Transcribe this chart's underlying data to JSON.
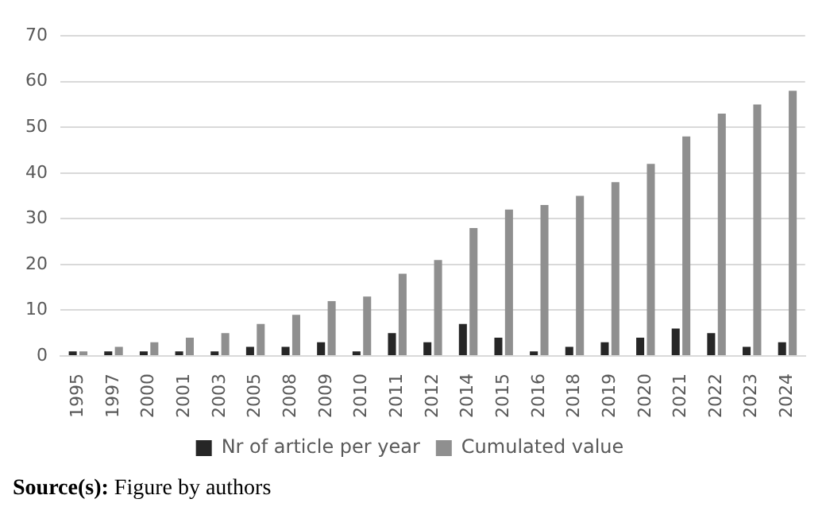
{
  "chart_data": {
    "type": "bar",
    "categories": [
      "1995",
      "1997",
      "2000",
      "2001",
      "2003",
      "2005",
      "2008",
      "2009",
      "2010",
      "2011",
      "2012",
      "2014",
      "2015",
      "2016",
      "2018",
      "2019",
      "2020",
      "2021",
      "2022",
      "2023",
      "2024"
    ],
    "series": [
      {
        "name": "Nr of article per year",
        "color": "#262626",
        "values": [
          1,
          1,
          1,
          1,
          1,
          2,
          2,
          3,
          1,
          5,
          3,
          7,
          4,
          1,
          2,
          3,
          4,
          6,
          5,
          2,
          3
        ]
      },
      {
        "name": "Cumulated value",
        "color": "#8f8f8f",
        "values": [
          1,
          2,
          3,
          4,
          5,
          7,
          9,
          12,
          13,
          18,
          21,
          28,
          32,
          33,
          35,
          38,
          42,
          48,
          53,
          55,
          58
        ]
      }
    ],
    "ylim": [
      0,
      70
    ],
    "yticks": [
      0,
      10,
      20,
      30,
      40,
      50,
      60,
      70
    ],
    "grid": "y",
    "legend": "bottom",
    "annotations": [
      "Source(s): Figure by authors"
    ]
  }
}
